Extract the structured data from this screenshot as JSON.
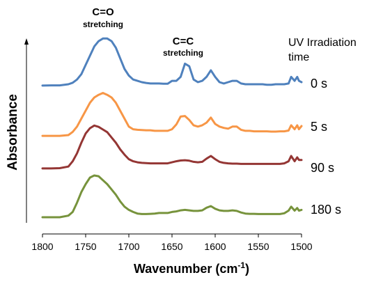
{
  "chart_data": {
    "type": "line",
    "xlabel": "Wavenumber (cm",
    "xlabel_sup": "-1",
    "xlabel_end": ")",
    "ylabel": "Absorbance",
    "x_reversed": true,
    "xlim": [
      1800,
      1500
    ],
    "x_ticks": [
      "1800",
      "1750",
      "1700",
      "1650",
      "1600",
      "1550",
      "1500"
    ],
    "x_tick_values": [
      1800,
      1750,
      1700,
      1650,
      1600,
      1550,
      1500
    ],
    "legend_title_line1": "UV Irradiation",
    "legend_title_line2": "time",
    "annotations": [
      {
        "text": "C=O",
        "sub": "stretching",
        "x": 1726
      },
      {
        "text": "C=C",
        "sub": "stretching",
        "x": 1630
      }
    ],
    "series": [
      {
        "name": "0 s",
        "color": "#4f81bd",
        "x": [
          1800,
          1790,
          1780,
          1770,
          1765,
          1760,
          1755,
          1750,
          1745,
          1740,
          1735,
          1730,
          1725,
          1720,
          1715,
          1710,
          1705,
          1700,
          1695,
          1690,
          1685,
          1680,
          1675,
          1670,
          1665,
          1660,
          1655,
          1650,
          1645,
          1640,
          1635,
          1630,
          1625,
          1620,
          1615,
          1610,
          1605,
          1600,
          1595,
          1590,
          1585,
          1580,
          1575,
          1570,
          1565,
          1560,
          1555,
          1550,
          1545,
          1540,
          1535,
          1530,
          1525,
          1520,
          1515,
          1512,
          1508,
          1505,
          1503,
          1500
        ],
        "y": [
          0.37,
          0.38,
          0.38,
          0.42,
          0.48,
          0.6,
          0.8,
          1.15,
          1.5,
          1.85,
          2.05,
          2.15,
          2.15,
          2.05,
          1.8,
          1.4,
          1.0,
          0.75,
          0.6,
          0.55,
          0.5,
          0.47,
          0.45,
          0.45,
          0.45,
          0.44,
          0.44,
          0.55,
          0.55,
          0.7,
          1.2,
          1.1,
          0.6,
          0.5,
          0.55,
          0.7,
          0.95,
          0.7,
          0.5,
          0.45,
          0.5,
          0.55,
          0.55,
          0.45,
          0.42,
          0.42,
          0.42,
          0.42,
          0.42,
          0.4,
          0.4,
          0.42,
          0.42,
          0.42,
          0.45,
          0.7,
          0.55,
          0.7,
          0.55,
          0.5
        ]
      },
      {
        "name": "5 s",
        "color": "#f79646",
        "x": [
          1800,
          1790,
          1780,
          1770,
          1765,
          1760,
          1755,
          1750,
          1745,
          1740,
          1735,
          1730,
          1725,
          1720,
          1715,
          1710,
          1705,
          1700,
          1695,
          1690,
          1685,
          1680,
          1675,
          1670,
          1665,
          1660,
          1655,
          1650,
          1645,
          1640,
          1635,
          1630,
          1625,
          1620,
          1615,
          1610,
          1605,
          1600,
          1595,
          1590,
          1585,
          1580,
          1575,
          1570,
          1565,
          1560,
          1555,
          1550,
          1545,
          1540,
          1535,
          1530,
          1525,
          1520,
          1515,
          1512,
          1508,
          1505,
          1503,
          1500
        ],
        "y": [
          0.05,
          0.05,
          0.05,
          0.08,
          0.2,
          0.4,
          0.7,
          1.0,
          1.3,
          1.5,
          1.6,
          1.67,
          1.6,
          1.5,
          1.3,
          1.0,
          0.7,
          0.4,
          0.3,
          0.28,
          0.27,
          0.26,
          0.26,
          0.24,
          0.24,
          0.24,
          0.24,
          0.3,
          0.48,
          0.78,
          0.8,
          0.65,
          0.45,
          0.4,
          0.45,
          0.55,
          0.74,
          0.5,
          0.4,
          0.35,
          0.32,
          0.4,
          0.4,
          0.28,
          0.24,
          0.24,
          0.22,
          0.22,
          0.22,
          0.22,
          0.21,
          0.21,
          0.22,
          0.22,
          0.25,
          0.45,
          0.3,
          0.45,
          0.3,
          0.42
        ]
      },
      {
        "name": "90 s",
        "color": "#943634",
        "x": [
          1800,
          1790,
          1780,
          1770,
          1765,
          1760,
          1755,
          1750,
          1745,
          1740,
          1735,
          1730,
          1725,
          1720,
          1715,
          1710,
          1705,
          1700,
          1695,
          1690,
          1685,
          1680,
          1675,
          1670,
          1665,
          1660,
          1655,
          1650,
          1645,
          1640,
          1635,
          1630,
          1625,
          1620,
          1615,
          1610,
          1605,
          1600,
          1595,
          1590,
          1585,
          1580,
          1575,
          1570,
          1565,
          1560,
          1555,
          1550,
          1545,
          1540,
          1535,
          1530,
          1525,
          1520,
          1515,
          1512,
          1508,
          1505,
          1503,
          1500
        ],
        "y": [
          0.03,
          0.03,
          0.04,
          0.1,
          0.3,
          0.6,
          1.0,
          1.35,
          1.55,
          1.65,
          1.6,
          1.5,
          1.4,
          1.2,
          1.0,
          0.75,
          0.55,
          0.38,
          0.3,
          0.26,
          0.24,
          0.23,
          0.22,
          0.22,
          0.22,
          0.22,
          0.22,
          0.26,
          0.3,
          0.33,
          0.34,
          0.32,
          0.28,
          0.26,
          0.28,
          0.4,
          0.5,
          0.38,
          0.28,
          0.24,
          0.22,
          0.21,
          0.21,
          0.2,
          0.2,
          0.2,
          0.2,
          0.2,
          0.2,
          0.2,
          0.2,
          0.2,
          0.2,
          0.22,
          0.3,
          0.5,
          0.3,
          0.45,
          0.35,
          0.35
        ]
      },
      {
        "name": "180 s",
        "color": "#77933c",
        "x": [
          1800,
          1790,
          1780,
          1770,
          1765,
          1760,
          1755,
          1750,
          1745,
          1740,
          1735,
          1730,
          1725,
          1720,
          1715,
          1710,
          1705,
          1700,
          1695,
          1690,
          1685,
          1680,
          1675,
          1670,
          1665,
          1660,
          1655,
          1650,
          1645,
          1640,
          1635,
          1630,
          1625,
          1620,
          1615,
          1610,
          1605,
          1600,
          1595,
          1590,
          1585,
          1580,
          1575,
          1570,
          1565,
          1560,
          1555,
          1550,
          1545,
          1540,
          1535,
          1530,
          1525,
          1520,
          1515,
          1512,
          1508,
          1505,
          1503,
          1500
        ],
        "y": [
          0.0,
          0.0,
          0.0,
          0.06,
          0.2,
          0.55,
          0.95,
          1.25,
          1.5,
          1.58,
          1.55,
          1.4,
          1.25,
          1.05,
          0.85,
          0.6,
          0.4,
          0.28,
          0.2,
          0.14,
          0.12,
          0.12,
          0.13,
          0.14,
          0.16,
          0.16,
          0.16,
          0.2,
          0.22,
          0.26,
          0.28,
          0.26,
          0.24,
          0.24,
          0.26,
          0.36,
          0.42,
          0.32,
          0.26,
          0.24,
          0.24,
          0.26,
          0.24,
          0.18,
          0.14,
          0.13,
          0.13,
          0.12,
          0.12,
          0.12,
          0.12,
          0.12,
          0.12,
          0.15,
          0.25,
          0.4,
          0.25,
          0.35,
          0.25,
          0.28
        ]
      }
    ]
  }
}
